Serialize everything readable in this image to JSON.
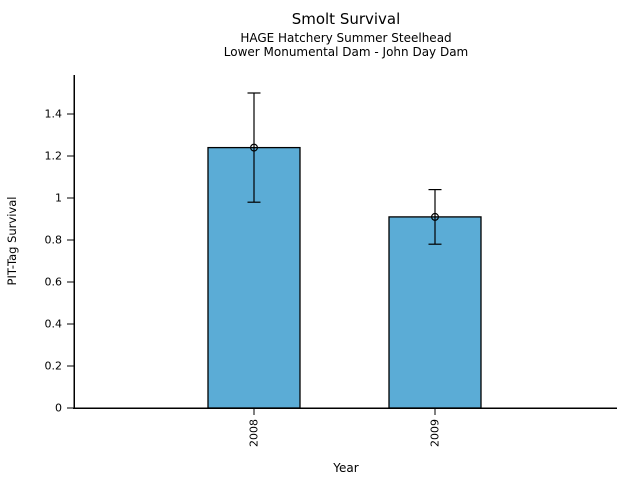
{
  "chart_data": {
    "type": "bar",
    "title": "Smolt Survival",
    "subtitles": [
      "HAGE Hatchery Summer Steelhead",
      "Lower Monumental Dam - John Day Dam"
    ],
    "categories": [
      "2008",
      "2009"
    ],
    "values": [
      1.24,
      0.91
    ],
    "error_bars": [
      {
        "lower": 0.98,
        "upper": 1.5
      },
      {
        "lower": 0.78,
        "upper": 1.04
      }
    ],
    "xlabel": "Year",
    "ylabel": "PIT-Tag Survival",
    "ylim": [
      0,
      1.58
    ],
    "yticks": [
      0,
      0.2,
      0.4,
      0.6,
      0.8,
      1,
      1.2,
      1.4
    ],
    "ytick_labels": [
      "0",
      "0.2",
      "0.4",
      "0.6",
      "0.8",
      "1",
      "1.2",
      "1.4"
    ],
    "grid": false,
    "legend": "none",
    "marker": "open-circle",
    "bar_color": "#5BACD6",
    "bar_edge_color": "#000000",
    "error_color": "#000000",
    "axis_color": "#000000",
    "text_color": "#000000",
    "background_color": "#FFFFFF"
  }
}
